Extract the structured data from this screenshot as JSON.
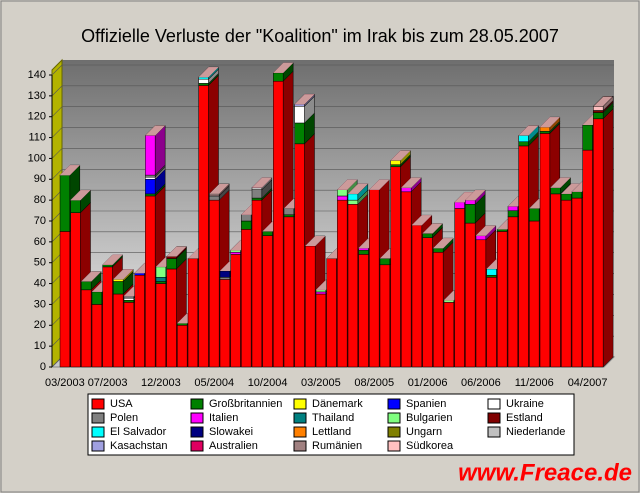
{
  "chart_data": {
    "type": "bar3d-stacked",
    "title": "Offizielle Verluste der \"Koalition\" im Irak bis zum 28.05.2007",
    "watermark": "www.Freace.de",
    "categories": [
      "03/2003",
      null,
      null,
      null,
      "07/2003",
      null,
      null,
      null,
      null,
      "12/2003",
      null,
      null,
      null,
      null,
      "05/2004",
      null,
      null,
      null,
      null,
      "10/2004",
      null,
      null,
      null,
      null,
      "03/2005",
      null,
      null,
      null,
      null,
      "08/2005",
      null,
      null,
      null,
      null,
      "01/2006",
      null,
      null,
      null,
      null,
      "06/2006",
      null,
      null,
      null,
      null,
      "11/2006",
      null,
      null,
      null,
      null,
      "04/2007",
      null
    ],
    "ylim": [
      0,
      140
    ],
    "yticks": [
      0,
      10,
      20,
      30,
      40,
      50,
      60,
      70,
      80,
      90,
      100,
      110,
      120,
      130,
      140
    ],
    "grid": true,
    "series": [
      {
        "name": "USA",
        "color": "#ff0000",
        "values": [
          65,
          74,
          37,
          30,
          48,
          35,
          31,
          44,
          82,
          40,
          47,
          20,
          52,
          135,
          80,
          42,
          54,
          66,
          80,
          63,
          137,
          72,
          107,
          58,
          35,
          52,
          80,
          78,
          54,
          85,
          49,
          96,
          84,
          68,
          62,
          55,
          31,
          76,
          69,
          61,
          43,
          65,
          72,
          106,
          70,
          112,
          83,
          80,
          81,
          104,
          119
        ]
      },
      {
        "name": "Großbritannien",
        "color": "#008000",
        "values": [
          27,
          6,
          4,
          6,
          1,
          6,
          1,
          0,
          1,
          1,
          5,
          1,
          0,
          1,
          0,
          0,
          0,
          4,
          1,
          2,
          4,
          1,
          10,
          0,
          0,
          0,
          0,
          0,
          2,
          0,
          3,
          1,
          0,
          0,
          2,
          2,
          0,
          0,
          9,
          0,
          1,
          1,
          3,
          2,
          6,
          1,
          3,
          3,
          3,
          12,
          3
        ]
      },
      {
        "name": "Dänemark",
        "color": "#ffff00",
        "values": [
          0,
          0,
          0,
          0,
          0,
          1,
          0,
          0,
          0,
          0,
          0,
          0,
          0,
          0,
          0,
          0,
          0,
          0,
          0,
          0,
          0,
          0,
          0,
          0,
          0,
          0,
          0,
          0,
          0,
          0,
          0,
          2,
          0,
          0,
          0,
          0,
          0,
          0,
          0,
          0,
          0,
          0,
          0,
          0,
          0,
          0,
          0,
          0,
          0,
          0,
          0
        ]
      },
      {
        "name": "Spanien",
        "color": "#0000ff",
        "values": [
          0,
          0,
          0,
          0,
          0,
          0,
          0,
          1,
          7,
          0,
          0,
          0,
          0,
          0,
          0,
          0,
          0,
          0,
          0,
          0,
          0,
          0,
          0,
          0,
          0,
          0,
          0,
          0,
          0,
          0,
          0,
          0,
          0,
          0,
          0,
          0,
          0,
          0,
          0,
          0,
          0,
          0,
          0,
          0,
          0,
          0,
          0,
          0,
          0,
          0,
          0
        ]
      },
      {
        "name": "Ukraine",
        "color": "#ffffff",
        "values": [
          0,
          0,
          0,
          0,
          0,
          0,
          1,
          0,
          1,
          0,
          0,
          0,
          0,
          2,
          0,
          0,
          0,
          0,
          0,
          0,
          0,
          0,
          8,
          0,
          0,
          0,
          0,
          0,
          0,
          0,
          0,
          0,
          0,
          0,
          0,
          0,
          0,
          0,
          0,
          0,
          0,
          0,
          0,
          0,
          0,
          0,
          0,
          0,
          0,
          0,
          0
        ]
      },
      {
        "name": "Polen",
        "color": "#808080",
        "values": [
          0,
          0,
          0,
          0,
          0,
          0,
          1,
          0,
          1,
          0,
          0,
          0,
          0,
          0,
          2,
          1,
          0,
          3,
          4,
          0,
          0,
          3,
          0,
          0,
          0,
          0,
          0,
          0,
          0,
          0,
          0,
          0,
          0,
          0,
          0,
          0,
          0,
          0,
          0,
          0,
          0,
          0,
          0,
          0,
          0,
          0,
          0,
          0,
          0,
          0,
          0
        ]
      },
      {
        "name": "Italien",
        "color": "#ff00ff",
        "values": [
          0,
          0,
          0,
          0,
          0,
          0,
          0,
          0,
          19,
          0,
          0,
          0,
          0,
          0,
          0,
          0,
          1,
          0,
          0,
          0,
          0,
          0,
          0,
          0,
          1,
          0,
          2,
          0,
          1,
          0,
          0,
          0,
          2,
          0,
          0,
          0,
          0,
          3,
          2,
          2,
          0,
          0,
          2,
          0,
          0,
          0,
          0,
          0,
          0,
          0,
          0
        ]
      },
      {
        "name": "Thailand",
        "color": "#008080",
        "values": [
          0,
          0,
          0,
          0,
          0,
          0,
          0,
          0,
          0,
          2,
          0,
          0,
          0,
          0,
          0,
          0,
          0,
          0,
          0,
          0,
          0,
          0,
          0,
          0,
          0,
          0,
          0,
          0,
          0,
          0,
          0,
          0,
          0,
          0,
          0,
          0,
          0,
          0,
          0,
          0,
          0,
          0,
          0,
          0,
          0,
          0,
          0,
          0,
          0,
          0,
          0
        ]
      },
      {
        "name": "Bulgarien",
        "color": "#80ff80",
        "values": [
          0,
          0,
          0,
          0,
          0,
          0,
          0,
          0,
          0,
          5,
          0,
          0,
          0,
          0,
          0,
          0,
          1,
          0,
          0,
          0,
          0,
          0,
          0,
          0,
          1,
          0,
          3,
          2,
          0,
          0,
          0,
          0,
          0,
          0,
          0,
          0,
          1,
          0,
          0,
          0,
          0,
          0,
          0,
          0,
          0,
          0,
          0,
          0,
          0,
          0,
          0
        ]
      },
      {
        "name": "Estland",
        "color": "#800000",
        "values": [
          0,
          0,
          0,
          0,
          0,
          0,
          0,
          0,
          0,
          0,
          1,
          0,
          0,
          0,
          0,
          0,
          0,
          0,
          0,
          0,
          0,
          0,
          0,
          0,
          0,
          0,
          0,
          0,
          0,
          0,
          0,
          0,
          0,
          0,
          0,
          0,
          0,
          0,
          0,
          0,
          0,
          0,
          0,
          0,
          0,
          0,
          0,
          0,
          0,
          0,
          1
        ]
      },
      {
        "name": "El Salvador",
        "color": "#00ffff",
        "values": [
          0,
          0,
          0,
          0,
          0,
          0,
          0,
          0,
          0,
          0,
          0,
          0,
          0,
          1,
          0,
          0,
          0,
          0,
          0,
          0,
          0,
          0,
          0,
          0,
          0,
          0,
          0,
          3,
          0,
          0,
          0,
          0,
          0,
          0,
          0,
          0,
          0,
          0,
          0,
          0,
          3,
          0,
          0,
          3,
          0,
          0,
          0,
          0,
          0,
          0,
          0
        ]
      },
      {
        "name": "Slowakei",
        "color": "#000080",
        "values": [
          0,
          0,
          0,
          0,
          0,
          0,
          0,
          0,
          0,
          0,
          0,
          0,
          0,
          0,
          0,
          3,
          0,
          0,
          0,
          0,
          0,
          0,
          0,
          0,
          0,
          0,
          0,
          0,
          0,
          0,
          0,
          0,
          0,
          0,
          0,
          0,
          0,
          0,
          0,
          0,
          0,
          0,
          0,
          0,
          0,
          0,
          0,
          0,
          0,
          0,
          0
        ]
      },
      {
        "name": "Lettland",
        "color": "#ff8000",
        "values": [
          0,
          0,
          0,
          0,
          0,
          0,
          0,
          0,
          0,
          0,
          0,
          0,
          0,
          0,
          0,
          0,
          0,
          0,
          0,
          0,
          0,
          0,
          0,
          0,
          0,
          0,
          0,
          0,
          0,
          0,
          0,
          0,
          0,
          0,
          0,
          0,
          0,
          0,
          0,
          0,
          0,
          0,
          0,
          0,
          0,
          2,
          0,
          0,
          0,
          0,
          0
        ]
      },
      {
        "name": "Ungarn",
        "color": "#808000",
        "values": [
          0,
          0,
          0,
          0,
          0,
          0,
          0,
          0,
          0,
          0,
          0,
          0,
          0,
          0,
          0,
          0,
          0,
          0,
          0,
          0,
          0,
          0,
          0,
          0,
          0,
          0,
          0,
          0,
          0,
          0,
          0,
          0,
          0,
          0,
          0,
          0,
          0,
          0,
          0,
          0,
          0,
          0,
          0,
          0,
          0,
          0,
          0,
          0,
          0,
          0,
          0
        ]
      },
      {
        "name": "Niederlande",
        "color": "#c0c0c0",
        "values": [
          0,
          0,
          0,
          0,
          0,
          0,
          0,
          0,
          0,
          0,
          0,
          0,
          0,
          0,
          0,
          0,
          0,
          0,
          1,
          0,
          0,
          0,
          0,
          0,
          0,
          0,
          0,
          0,
          0,
          0,
          0,
          0,
          0,
          0,
          0,
          0,
          0,
          0,
          0,
          0,
          0,
          0,
          0,
          0,
          0,
          0,
          0,
          0,
          0,
          0,
          0
        ]
      },
      {
        "name": "Kasachstan",
        "color": "#a0a0e0",
        "values": [
          0,
          0,
          0,
          0,
          0,
          0,
          0,
          0,
          0,
          0,
          0,
          0,
          0,
          0,
          0,
          0,
          0,
          0,
          0,
          0,
          0,
          0,
          1,
          0,
          0,
          0,
          0,
          0,
          0,
          0,
          0,
          0,
          0,
          0,
          0,
          0,
          0,
          0,
          0,
          0,
          0,
          0,
          0,
          0,
          0,
          0,
          0,
          0,
          0,
          0,
          0
        ]
      },
      {
        "name": "Australien",
        "color": "#e00060",
        "values": [
          0,
          0,
          0,
          0,
          0,
          0,
          0,
          0,
          0,
          0,
          0,
          0,
          0,
          0,
          0,
          0,
          0,
          0,
          0,
          0,
          0,
          0,
          0,
          0,
          0,
          0,
          0,
          0,
          0,
          0,
          0,
          0,
          0,
          0,
          0,
          0,
          0,
          0,
          0,
          0,
          0,
          0,
          0,
          0,
          0,
          0,
          0,
          0,
          0,
          0,
          0
        ]
      },
      {
        "name": "Rumänien",
        "color": "#a08080",
        "values": [
          0,
          0,
          0,
          0,
          0,
          0,
          0,
          0,
          0,
          0,
          0,
          0,
          0,
          0,
          1,
          0,
          0,
          0,
          0,
          0,
          0,
          0,
          0,
          0,
          0,
          0,
          0,
          0,
          0,
          0,
          0,
          0,
          0,
          0,
          0,
          0,
          0,
          0,
          0,
          0,
          0,
          0,
          0,
          0,
          0,
          0,
          0,
          0,
          0,
          0,
          0
        ]
      },
      {
        "name": "Südkorea",
        "color": "#ffc0c0",
        "values": [
          0,
          0,
          0,
          0,
          0,
          0,
          0,
          0,
          0,
          0,
          0,
          0,
          0,
          0,
          0,
          0,
          0,
          0,
          0,
          0,
          0,
          0,
          0,
          0,
          0,
          0,
          0,
          0,
          0,
          0,
          0,
          0,
          0,
          0,
          0,
          0,
          0,
          0,
          0,
          0,
          0,
          0,
          0,
          0,
          0,
          0,
          0,
          0,
          0,
          0,
          2
        ]
      }
    ]
  }
}
